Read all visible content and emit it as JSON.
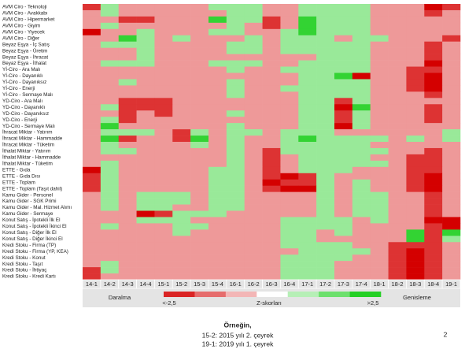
{
  "chart_data": {
    "type": "heatmap",
    "rows": [
      "AVM Ciro - Teknoloji",
      "AVM Ciro - Avakkabı",
      "AVM Ciro - Hipermarket",
      "AVM Ciro - Giyim",
      "AVM Ciro - Yiyecek",
      "AVM Ciro - Diğer",
      "Beyaz Eşya - İç Satış",
      "Beyaz Eşya - Üretim",
      "Beyaz Eşya - İhracat",
      "Beyaz Eşya - İthalat",
      "Yİ-Ciro - Ara Malı",
      "Yİ-Ciro - Dayanıklı",
      "Yİ-Ciro - Dayanıksız",
      "Yİ-Ciro - Enerji",
      "Yİ-Ciro - Sermaye Malı",
      "YD-Ciro - Ara Malı",
      "YD-Ciro - Dayanıklı",
      "YD-Ciro - Dayanıksız",
      "YD-Ciro - Enerji",
      "YD-Ciro - Sermaye Malı",
      "İhracat Miktar - Yatırım",
      "İhracat Miktar - Hammadde",
      "İhracat Miktar - Tüketim",
      "İthalat Miktar - Yatırım",
      "İthalat Miktar - Hammadde",
      "İthalat Miktar - Tüketim",
      "ETTE - Gıda",
      "ETTE - Gıda Dısı",
      "ETTE - Toplam",
      "ETTE - Toplam (Taşıt dahil)",
      "Kamu Gider - Personel",
      "Kamu Gider - SGK Primi",
      "Kamu Gider - Mal. Hizmet Alımı",
      "Kamu Gider - Sermaye",
      "Konut Satış - İpotekli İlk El",
      "Konut Satış - İpotekli İkinci El",
      "Konut Satış - Diğer İlk El",
      "Konut Satış - Diğer İkinci El",
      "Kredi Stoku - Firma (TP)",
      "Kredi Stoku - Firma (YP, KEA)",
      "Kredi Stoku - Konut",
      "Kredi Stoku - Taşıt",
      "Kredi Stoku - İhtiyaç",
      "Kredi Stoku - Kredi Kartı"
    ],
    "columns": [
      "14-1",
      "14-2",
      "14-3",
      "14-4",
      "15-1",
      "15-2",
      "15-3",
      "15-4",
      "16-1",
      "16-2",
      "16-3",
      "16-4",
      "17-1",
      "17-2",
      "17-3",
      "17-4",
      "18-1",
      "18-2",
      "18-3",
      "18-4",
      "19-1"
    ],
    "values": [
      [
        -2,
        1,
        -1,
        -1,
        -1,
        -1,
        -1,
        1,
        1,
        1,
        -1,
        -1,
        1,
        1,
        1,
        1,
        -1,
        -1,
        -1,
        -3,
        -2
      ],
      [
        -1,
        1,
        -1,
        -1,
        -1,
        -1,
        -1,
        -1,
        1,
        1,
        -1,
        -1,
        1,
        1,
        1,
        1,
        -1,
        -1,
        -1,
        -2,
        -1
      ],
      [
        -1,
        -1,
        -2,
        -2,
        -1,
        -1,
        -1,
        2,
        1,
        1,
        -2,
        -1,
        2,
        1,
        1,
        1,
        -1,
        -1,
        -1,
        -1,
        -1
      ],
      [
        -1,
        1,
        -1,
        -1,
        -1,
        -1,
        -1,
        -1,
        1,
        -1,
        -2,
        -1,
        2,
        1,
        1,
        1,
        -1,
        -1,
        -1,
        -1,
        -1
      ],
      [
        -3,
        -1,
        -1,
        1,
        -1,
        -1,
        -1,
        1,
        1,
        -1,
        -1,
        1,
        2,
        1,
        1,
        1,
        -1,
        -1,
        -1,
        -1,
        -1
      ],
      [
        -1,
        -1,
        2,
        1,
        -1,
        1,
        -1,
        -1,
        -1,
        1,
        -1,
        1,
        1,
        1,
        -1,
        1,
        1,
        -1,
        -1,
        -1,
        -2
      ],
      [
        -1,
        1,
        1,
        1,
        -1,
        -1,
        -1,
        -1,
        1,
        1,
        -1,
        1,
        1,
        1,
        1,
        1,
        -1,
        -1,
        -1,
        -2,
        -1
      ],
      [
        -1,
        -1,
        -1,
        1,
        -1,
        -1,
        -1,
        -1,
        1,
        1,
        -1,
        1,
        1,
        1,
        1,
        1,
        -1,
        -1,
        -1,
        -2,
        -1
      ],
      [
        -1,
        -1,
        -1,
        1,
        -1,
        -1,
        -1,
        -1,
        -1,
        -1,
        -1,
        -1,
        -1,
        1,
        1,
        1,
        -1,
        -1,
        -1,
        -2,
        -1
      ],
      [
        -1,
        1,
        1,
        1,
        -1,
        -1,
        -1,
        1,
        1,
        1,
        -1,
        -1,
        1,
        1,
        1,
        1,
        -1,
        -1,
        -1,
        -3,
        -1
      ],
      [
        -1,
        -1,
        -1,
        -1,
        -1,
        -1,
        -1,
        -1,
        1,
        -1,
        -1,
        1,
        1,
        1,
        1,
        1,
        -1,
        -1,
        -2,
        -2,
        -1
      ],
      [
        -1,
        -1,
        -1,
        -1,
        -1,
        -1,
        -1,
        -1,
        -1,
        -1,
        -1,
        -1,
        1,
        1,
        2,
        -3,
        -1,
        -1,
        -2,
        -3,
        -1
      ],
      [
        -1,
        -1,
        1,
        -1,
        -1,
        -1,
        -1,
        -1,
        1,
        -1,
        -1,
        -1,
        1,
        1,
        1,
        1,
        -1,
        -1,
        -2,
        -3,
        -1
      ],
      [
        -1,
        -1,
        -1,
        -1,
        -1,
        -1,
        -1,
        -1,
        1,
        -1,
        -1,
        1,
        1,
        1,
        1,
        1,
        -1,
        -1,
        -2,
        -3,
        -1
      ],
      [
        -1,
        -1,
        -1,
        -1,
        -1,
        -1,
        -1,
        -1,
        1,
        -1,
        -1,
        -1,
        1,
        1,
        1,
        1,
        -1,
        -1,
        -1,
        -2,
        -1
      ],
      [
        -1,
        -1,
        -2,
        -2,
        -2,
        -1,
        -1,
        -1,
        -1,
        -1,
        -1,
        -1,
        1,
        1,
        -2,
        1,
        -1,
        -1,
        -1,
        -1,
        -1
      ],
      [
        -1,
        1,
        -2,
        -2,
        -2,
        -1,
        -1,
        -1,
        -1,
        -1,
        -1,
        -1,
        1,
        1,
        -3,
        2,
        -1,
        -1,
        -1,
        -2,
        -1
      ],
      [
        -1,
        -1,
        -2,
        -1,
        -2,
        -1,
        -1,
        -1,
        1,
        -1,
        -1,
        -1,
        1,
        1,
        -2,
        1,
        -1,
        -1,
        -1,
        -2,
        -1
      ],
      [
        -1,
        1,
        -2,
        -1,
        -1,
        -1,
        -1,
        -1,
        -1,
        -1,
        -1,
        -1,
        1,
        1,
        -2,
        1,
        -1,
        -1,
        -1,
        -2,
        -1
      ],
      [
        -1,
        2,
        -1,
        -1,
        -1,
        -1,
        -1,
        -1,
        1,
        -1,
        -1,
        -1,
        1,
        1,
        -3,
        1,
        -1,
        -1,
        -1,
        -1,
        -1
      ],
      [
        -1,
        1,
        1,
        1,
        -1,
        -2,
        1,
        -1,
        1,
        1,
        -1,
        1,
        1,
        1,
        -1,
        -1,
        -1,
        -1,
        -1,
        -1,
        1
      ],
      [
        -1,
        2,
        -2,
        -1,
        -1,
        -2,
        2,
        -1,
        1,
        -1,
        -1,
        1,
        2,
        1,
        1,
        1,
        1,
        -1,
        1,
        -1,
        1
      ],
      [
        -1,
        1,
        -1,
        -1,
        -1,
        -1,
        1,
        -1,
        1,
        -1,
        -1,
        1,
        1,
        1,
        1,
        1,
        -1,
        -1,
        -1,
        -1,
        -1
      ],
      [
        -1,
        1,
        1,
        -1,
        -1,
        -1,
        -1,
        -1,
        1,
        -1,
        -2,
        1,
        1,
        1,
        1,
        1,
        1,
        -1,
        -1,
        -2,
        -1
      ],
      [
        -1,
        -1,
        -1,
        -1,
        -1,
        -1,
        -1,
        -1,
        1,
        -1,
        -2,
        -1,
        1,
        1,
        1,
        1,
        -1,
        -1,
        -2,
        -2,
        -1
      ],
      [
        -1,
        1,
        -1,
        -1,
        -1,
        -1,
        -1,
        -1,
        1,
        -1,
        -2,
        -1,
        1,
        1,
        1,
        1,
        1,
        -1,
        -2,
        -2,
        -1
      ],
      [
        -3,
        1,
        -1,
        -1,
        -1,
        -1,
        -1,
        1,
        1,
        -1,
        -2,
        -1,
        1,
        1,
        1,
        -1,
        -1,
        -1,
        -2,
        -2,
        -1
      ],
      [
        -2,
        1,
        -1,
        -1,
        -1,
        -1,
        -1,
        1,
        1,
        -1,
        -2,
        -3,
        -2,
        1,
        -1,
        -1,
        -1,
        -1,
        -2,
        -3,
        -1
      ],
      [
        -2,
        1,
        -1,
        -1,
        -1,
        -1,
        -1,
        1,
        1,
        -1,
        -3,
        -2,
        -2,
        1,
        -1,
        1,
        -1,
        -1,
        -2,
        -3,
        -1
      ],
      [
        -2,
        1,
        -1,
        -1,
        -1,
        -1,
        -1,
        1,
        1,
        -1,
        -2,
        -3,
        -3,
        1,
        -1,
        1,
        -1,
        -1,
        -2,
        -3,
        -1
      ],
      [
        -1,
        1,
        -1,
        1,
        1,
        1,
        -1,
        1,
        1,
        -1,
        -1,
        -1,
        -1,
        1,
        -1,
        1,
        1,
        -1,
        -1,
        -2,
        -1
      ],
      [
        -1,
        1,
        -1,
        1,
        1,
        1,
        -1,
        1,
        1,
        -1,
        -1,
        -1,
        -1,
        1,
        -1,
        1,
        1,
        -1,
        -1,
        -2,
        -1
      ],
      [
        -1,
        1,
        -1,
        1,
        1,
        -1,
        -1,
        1,
        1,
        -1,
        -1,
        -1,
        -1,
        1,
        -1,
        1,
        1,
        -1,
        -1,
        -2,
        -1
      ],
      [
        -1,
        -1,
        -1,
        -3,
        -2,
        1,
        1,
        1,
        -1,
        -1,
        -1,
        -1,
        -1,
        1,
        -1,
        1,
        1,
        -1,
        -1,
        -2,
        -1
      ],
      [
        -1,
        -1,
        -1,
        1,
        1,
        1,
        -1,
        -1,
        -1,
        -1,
        -1,
        1,
        1,
        1,
        1,
        -1,
        1,
        -1,
        -1,
        -3,
        -3
      ],
      [
        -1,
        1,
        -1,
        -1,
        -1,
        1,
        1,
        -1,
        -1,
        -1,
        -1,
        1,
        1,
        1,
        1,
        -1,
        -1,
        -1,
        -1,
        -2,
        -3
      ],
      [
        -1,
        -1,
        -1,
        -1,
        -1,
        1,
        -1,
        -1,
        -1,
        -1,
        -1,
        1,
        1,
        -1,
        1,
        -1,
        -1,
        -1,
        2,
        -2,
        2
      ],
      [
        -1,
        -1,
        -1,
        -1,
        -1,
        -1,
        -1,
        -1,
        -1,
        -1,
        -1,
        1,
        1,
        -1,
        -1,
        -1,
        -1,
        -1,
        2,
        -2,
        1
      ],
      [
        -1,
        -1,
        -1,
        -1,
        -1,
        -1,
        -1,
        -1,
        -1,
        -1,
        -1,
        1,
        1,
        1,
        1,
        -1,
        -1,
        -2,
        -2,
        -2,
        -1
      ],
      [
        -1,
        -1,
        -1,
        -1,
        -1,
        -1,
        -1,
        -1,
        -1,
        -1,
        -1,
        -1,
        1,
        1,
        1,
        1,
        -1,
        -2,
        -3,
        -2,
        -1
      ],
      [
        -1,
        -1,
        -1,
        -1,
        -1,
        -1,
        -1,
        -1,
        -1,
        -1,
        -1,
        1,
        1,
        1,
        1,
        -1,
        -1,
        -2,
        -3,
        -2,
        -1
      ],
      [
        -1,
        1,
        -1,
        -1,
        -1,
        -1,
        -1,
        -1,
        -1,
        -1,
        -1,
        1,
        1,
        1,
        -1,
        -1,
        -1,
        -2,
        -3,
        -2,
        -1
      ],
      [
        -2,
        1,
        -1,
        -1,
        -1,
        -1,
        -1,
        -1,
        -1,
        -1,
        -1,
        1,
        1,
        1,
        -1,
        -1,
        -1,
        -2,
        -3,
        -2,
        -1
      ],
      [
        -2,
        -1,
        -1,
        -1,
        -1,
        -1,
        -1,
        -1,
        -1,
        -1,
        -1,
        1,
        1,
        1,
        -1,
        -1,
        -1,
        -2,
        -3,
        -2,
        -1
      ]
    ],
    "zlim": [
      -2.5,
      2.5
    ],
    "low_color": "#d40000",
    "mid_color": "#ffffff",
    "high_color": "#00c800",
    "legend": {
      "title": "Z-skorları",
      "low_label": "<-2,5",
      "high_label": ">2,5",
      "left_label": "Daralma",
      "right_label": "Genisleme"
    },
    "footer": {
      "heading": "Örneğin,",
      "line1": "15-2: 2015 yılı 2. çeyrek",
      "line2": "19-1: 2019 yılı 1. çeyrek"
    },
    "page_number": "2"
  }
}
